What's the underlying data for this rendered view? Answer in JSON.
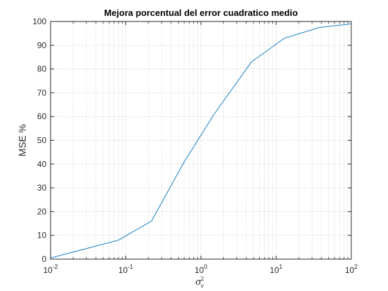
{
  "chart_data": {
    "type": "line",
    "title": "Mejora porcentual del error cuadratico medio",
    "ylabel": "MSE %",
    "xlabel": {
      "symbol": "σ",
      "superscript": "2",
      "subscript": "v"
    },
    "xscale": "log",
    "xlim": [
      0.01,
      100
    ],
    "ylim": [
      0,
      100
    ],
    "grid": true,
    "grid_style": "dotted",
    "x_ticks": [
      {
        "value": 0.01,
        "base": "10",
        "exp": "-2"
      },
      {
        "value": 0.1,
        "base": "10",
        "exp": "-1"
      },
      {
        "value": 1,
        "base": "10",
        "exp": "0"
      },
      {
        "value": 10,
        "base": "10",
        "exp": "1"
      },
      {
        "value": 100,
        "base": "10",
        "exp": "2"
      }
    ],
    "y_ticks": [
      0,
      10,
      20,
      30,
      40,
      50,
      60,
      70,
      80,
      90,
      100
    ],
    "line_color": "#0072bd",
    "series": [
      {
        "x": [
          0.01,
          0.08,
          0.22,
          0.6,
          1.5,
          4.7,
          13,
          38,
          100
        ],
        "y": [
          0.5,
          8,
          16,
          41,
          61,
          83,
          93,
          97.5,
          99
        ]
      }
    ]
  }
}
